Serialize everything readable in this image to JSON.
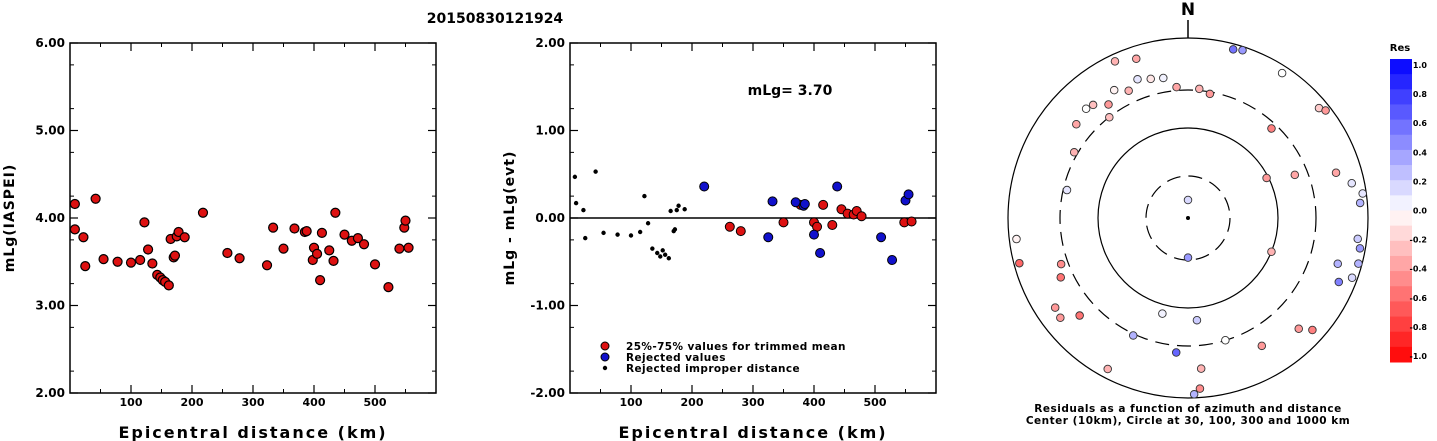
{
  "page": {
    "event_id": "20150830121924"
  },
  "chart_data": [
    {
      "type": "scatter",
      "xlabel": "Epicentral distance (km)",
      "ylabel": "mLg(IASPEI)",
      "xlim": [
        0,
        600
      ],
      "ylim": [
        2.0,
        6.0
      ],
      "x_ticks": [
        "100",
        "200",
        "300",
        "400",
        "500"
      ],
      "y_ticks": [
        "2.00",
        "3.00",
        "4.00",
        "5.00",
        "6.00"
      ],
      "grid": false,
      "points": [
        [
          8,
          4.16
        ],
        [
          8,
          3.87
        ],
        [
          22,
          3.78
        ],
        [
          25,
          3.45
        ],
        [
          42,
          4.22
        ],
        [
          55,
          3.53
        ],
        [
          78,
          3.5
        ],
        [
          100,
          3.49
        ],
        [
          115,
          3.52
        ],
        [
          122,
          3.95
        ],
        [
          128,
          3.64
        ],
        [
          135,
          3.48
        ],
        [
          143,
          3.35
        ],
        [
          148,
          3.32
        ],
        [
          152,
          3.29
        ],
        [
          156,
          3.27
        ],
        [
          162,
          3.23
        ],
        [
          165,
          3.76
        ],
        [
          170,
          3.55
        ],
        [
          172,
          3.57
        ],
        [
          175,
          3.79
        ],
        [
          178,
          3.84
        ],
        [
          188,
          3.78
        ],
        [
          218,
          4.06
        ],
        [
          258,
          3.6
        ],
        [
          278,
          3.54
        ],
        [
          323,
          3.46
        ],
        [
          333,
          3.89
        ],
        [
          350,
          3.65
        ],
        [
          368,
          3.88
        ],
        [
          385,
          3.84
        ],
        [
          388,
          3.85
        ],
        [
          398,
          3.52
        ],
        [
          400,
          3.66
        ],
        [
          405,
          3.59
        ],
        [
          410,
          3.29
        ],
        [
          413,
          3.83
        ],
        [
          425,
          3.63
        ],
        [
          432,
          3.51
        ],
        [
          435,
          4.06
        ],
        [
          450,
          3.81
        ],
        [
          462,
          3.74
        ],
        [
          472,
          3.77
        ],
        [
          482,
          3.7
        ],
        [
          500,
          3.47
        ],
        [
          522,
          3.21
        ],
        [
          540,
          3.65
        ],
        [
          548,
          3.89
        ],
        [
          550,
          3.97
        ],
        [
          555,
          3.66
        ]
      ]
    },
    {
      "type": "scatter",
      "xlabel": "Epicentral distance (km)",
      "ylabel": "mLg - mLg(evt)",
      "xlim": [
        0,
        600
      ],
      "ylim": [
        -2.0,
        2.0
      ],
      "x_ticks": [
        "100",
        "200",
        "300",
        "400",
        "500"
      ],
      "y_ticks": [
        "-2.00",
        "-1.00",
        "0.00",
        "1.00",
        "2.00"
      ],
      "reference_line": 0.0,
      "annotation": "mLg= 3.70",
      "legend": [
        "25%-75% values for trimmed mean",
        "Rejected values",
        "Rejected improper distance"
      ],
      "legend_colors": [
        "#dd1111",
        "#1111cc",
        "#000000"
      ],
      "series": [
        {
          "name": "25%-75% values for trimmed mean",
          "points": [
            [
              262,
              -0.1
            ],
            [
              280,
              -0.15
            ],
            [
              350,
              -0.05
            ],
            [
              378,
              0.15
            ],
            [
              400,
              -0.05
            ],
            [
              405,
              -0.1
            ],
            [
              415,
              0.15
            ],
            [
              430,
              -0.08
            ],
            [
              445,
              0.1
            ],
            [
              455,
              0.05
            ],
            [
              465,
              0.04
            ],
            [
              470,
              0.08
            ],
            [
              478,
              0.02
            ],
            [
              548,
              -0.05
            ],
            [
              560,
              -0.04
            ]
          ]
        },
        {
          "name": "Rejected values",
          "points": [
            [
              220,
              0.36
            ],
            [
              325,
              -0.22
            ],
            [
              332,
              0.19
            ],
            [
              370,
              0.18
            ],
            [
              383,
              0.14
            ],
            [
              385,
              0.16
            ],
            [
              400,
              -0.19
            ],
            [
              410,
              -0.4
            ],
            [
              438,
              0.36
            ],
            [
              510,
              -0.22
            ],
            [
              528,
              -0.48
            ],
            [
              550,
              0.2
            ],
            [
              555,
              0.27
            ]
          ]
        },
        {
          "name": "Rejected improper distance",
          "points": [
            [
              8,
              0.47
            ],
            [
              10,
              0.17
            ],
            [
              22,
              0.09
            ],
            [
              25,
              -0.23
            ],
            [
              42,
              0.53
            ],
            [
              55,
              -0.17
            ],
            [
              78,
              -0.19
            ],
            [
              100,
              -0.2
            ],
            [
              115,
              -0.16
            ],
            [
              122,
              0.25
            ],
            [
              128,
              -0.06
            ],
            [
              135,
              -0.35
            ],
            [
              143,
              -0.4
            ],
            [
              148,
              -0.44
            ],
            [
              152,
              -0.37
            ],
            [
              156,
              -0.42
            ],
            [
              162,
              -0.46
            ],
            [
              165,
              0.08
            ],
            [
              170,
              -0.15
            ],
            [
              172,
              -0.13
            ],
            [
              175,
              0.09
            ],
            [
              178,
              0.14
            ],
            [
              188,
              0.1
            ]
          ]
        }
      ]
    },
    {
      "type": "scatter",
      "subtype": "polar",
      "north_label": "N",
      "caption": [
        "Residuals as a function of azimuth and distance",
        "Center (10km), Circle at 30, 100, 300 and 1000 km"
      ],
      "rings_km": [
        30,
        100,
        300,
        1000
      ],
      "colorbar": {
        "title": "Res",
        "labels": [
          "1.0",
          "0.8",
          "0.6",
          "0.4",
          "0.2",
          "0.0",
          "-0.2",
          "-0.4",
          "-0.6",
          "-0.8",
          "-1.0"
        ],
        "positive_color": "#0000ff",
        "negative_color": "#ff0000"
      },
      "points": [
        {
          "az": 0,
          "r": 0.1,
          "res": 0.15
        },
        {
          "az": 180,
          "r": 0.22,
          "res": 0.4
        },
        {
          "az": 175,
          "r": 0.57,
          "res": 0.2
        },
        {
          "az": 185,
          "r": 0.75,
          "res": 0.6
        },
        {
          "az": 195,
          "r": 0.55,
          "res": 0.05
        },
        {
          "az": 112,
          "r": 0.5,
          "res": -0.3
        },
        {
          "az": 250,
          "r": 0.75,
          "res": -0.45
        },
        {
          "az": 245,
          "r": 0.78,
          "res": -0.55
        },
        {
          "az": 255,
          "r": 0.97,
          "res": -0.6
        },
        {
          "az": 263,
          "r": 0.96,
          "res": -0.05
        },
        {
          "az": 283,
          "r": 0.69,
          "res": 0.1
        },
        {
          "az": 300,
          "r": 0.73,
          "res": -0.3
        },
        {
          "az": 310,
          "r": 0.81,
          "res": -0.35
        },
        {
          "az": 317,
          "r": 0.83,
          "res": 0.0
        },
        {
          "az": 320,
          "r": 0.82,
          "res": -0.25
        },
        {
          "az": 322,
          "r": 0.71,
          "res": -0.25
        },
        {
          "az": 330,
          "r": 0.82,
          "res": -0.05
        },
        {
          "az": 335,
          "r": 0.78,
          "res": -0.3
        },
        {
          "az": 340,
          "r": 0.82,
          "res": 0.1
        },
        {
          "az": 345,
          "r": 0.8,
          "res": -0.1
        },
        {
          "az": 325,
          "r": 0.77,
          "res": -0.4
        },
        {
          "az": 335,
          "r": 0.96,
          "res": -0.3
        },
        {
          "az": 342,
          "r": 0.93,
          "res": -0.35
        },
        {
          "az": 15,
          "r": 0.97,
          "res": 0.55
        },
        {
          "az": 18,
          "r": 0.98,
          "res": 0.4
        },
        {
          "az": 350,
          "r": 0.79,
          "res": 0.05
        },
        {
          "az": 355,
          "r": 0.73,
          "res": -0.35
        },
        {
          "az": 5,
          "r": 0.72,
          "res": -0.3
        },
        {
          "az": 10,
          "r": 0.7,
          "res": -0.4
        },
        {
          "az": 33,
          "r": 0.96,
          "res": 0.0
        },
        {
          "az": 43,
          "r": 0.68,
          "res": -0.5
        },
        {
          "az": 50,
          "r": 0.95,
          "res": -0.2
        },
        {
          "az": 52,
          "r": 0.97,
          "res": -0.4
        },
        {
          "az": 63,
          "r": 0.49,
          "res": -0.4
        },
        {
          "az": 68,
          "r": 0.64,
          "res": -0.35
        },
        {
          "az": 73,
          "r": 0.86,
          "res": -0.35
        },
        {
          "az": 78,
          "r": 0.93,
          "res": 0.1
        },
        {
          "az": 82,
          "r": 0.98,
          "res": 0.1
        },
        {
          "az": 85,
          "r": 0.96,
          "res": 0.3
        },
        {
          "az": 97,
          "r": 0.95,
          "res": 0.2
        },
        {
          "az": 100,
          "r": 0.97,
          "res": 0.4
        },
        {
          "az": 105,
          "r": 0.98,
          "res": 0.3
        },
        {
          "az": 110,
          "r": 0.97,
          "res": 0.15
        },
        {
          "az": 107,
          "r": 0.87,
          "res": 0.3
        },
        {
          "az": 113,
          "r": 0.91,
          "res": 0.5
        },
        {
          "az": 132,
          "r": 0.93,
          "res": -0.5
        },
        {
          "az": 135,
          "r": 0.87,
          "res": -0.4
        },
        {
          "az": 150,
          "r": 0.82,
          "res": -0.4
        },
        {
          "az": 163,
          "r": 0.71,
          "res": 0.0
        },
        {
          "az": 175,
          "r": 0.84,
          "res": -0.3
        },
        {
          "az": 176,
          "r": 0.95,
          "res": -0.45
        },
        {
          "az": 178,
          "r": 0.98,
          "res": 0.3
        },
        {
          "az": 205,
          "r": 0.72,
          "res": 0.3
        },
        {
          "az": 228,
          "r": 0.81,
          "res": -0.55
        },
        {
          "az": 232,
          "r": 0.9,
          "res": -0.4
        },
        {
          "az": 236,
          "r": 0.89,
          "res": -0.4
        },
        {
          "az": 208,
          "r": 0.95,
          "res": -0.3
        }
      ]
    }
  ]
}
